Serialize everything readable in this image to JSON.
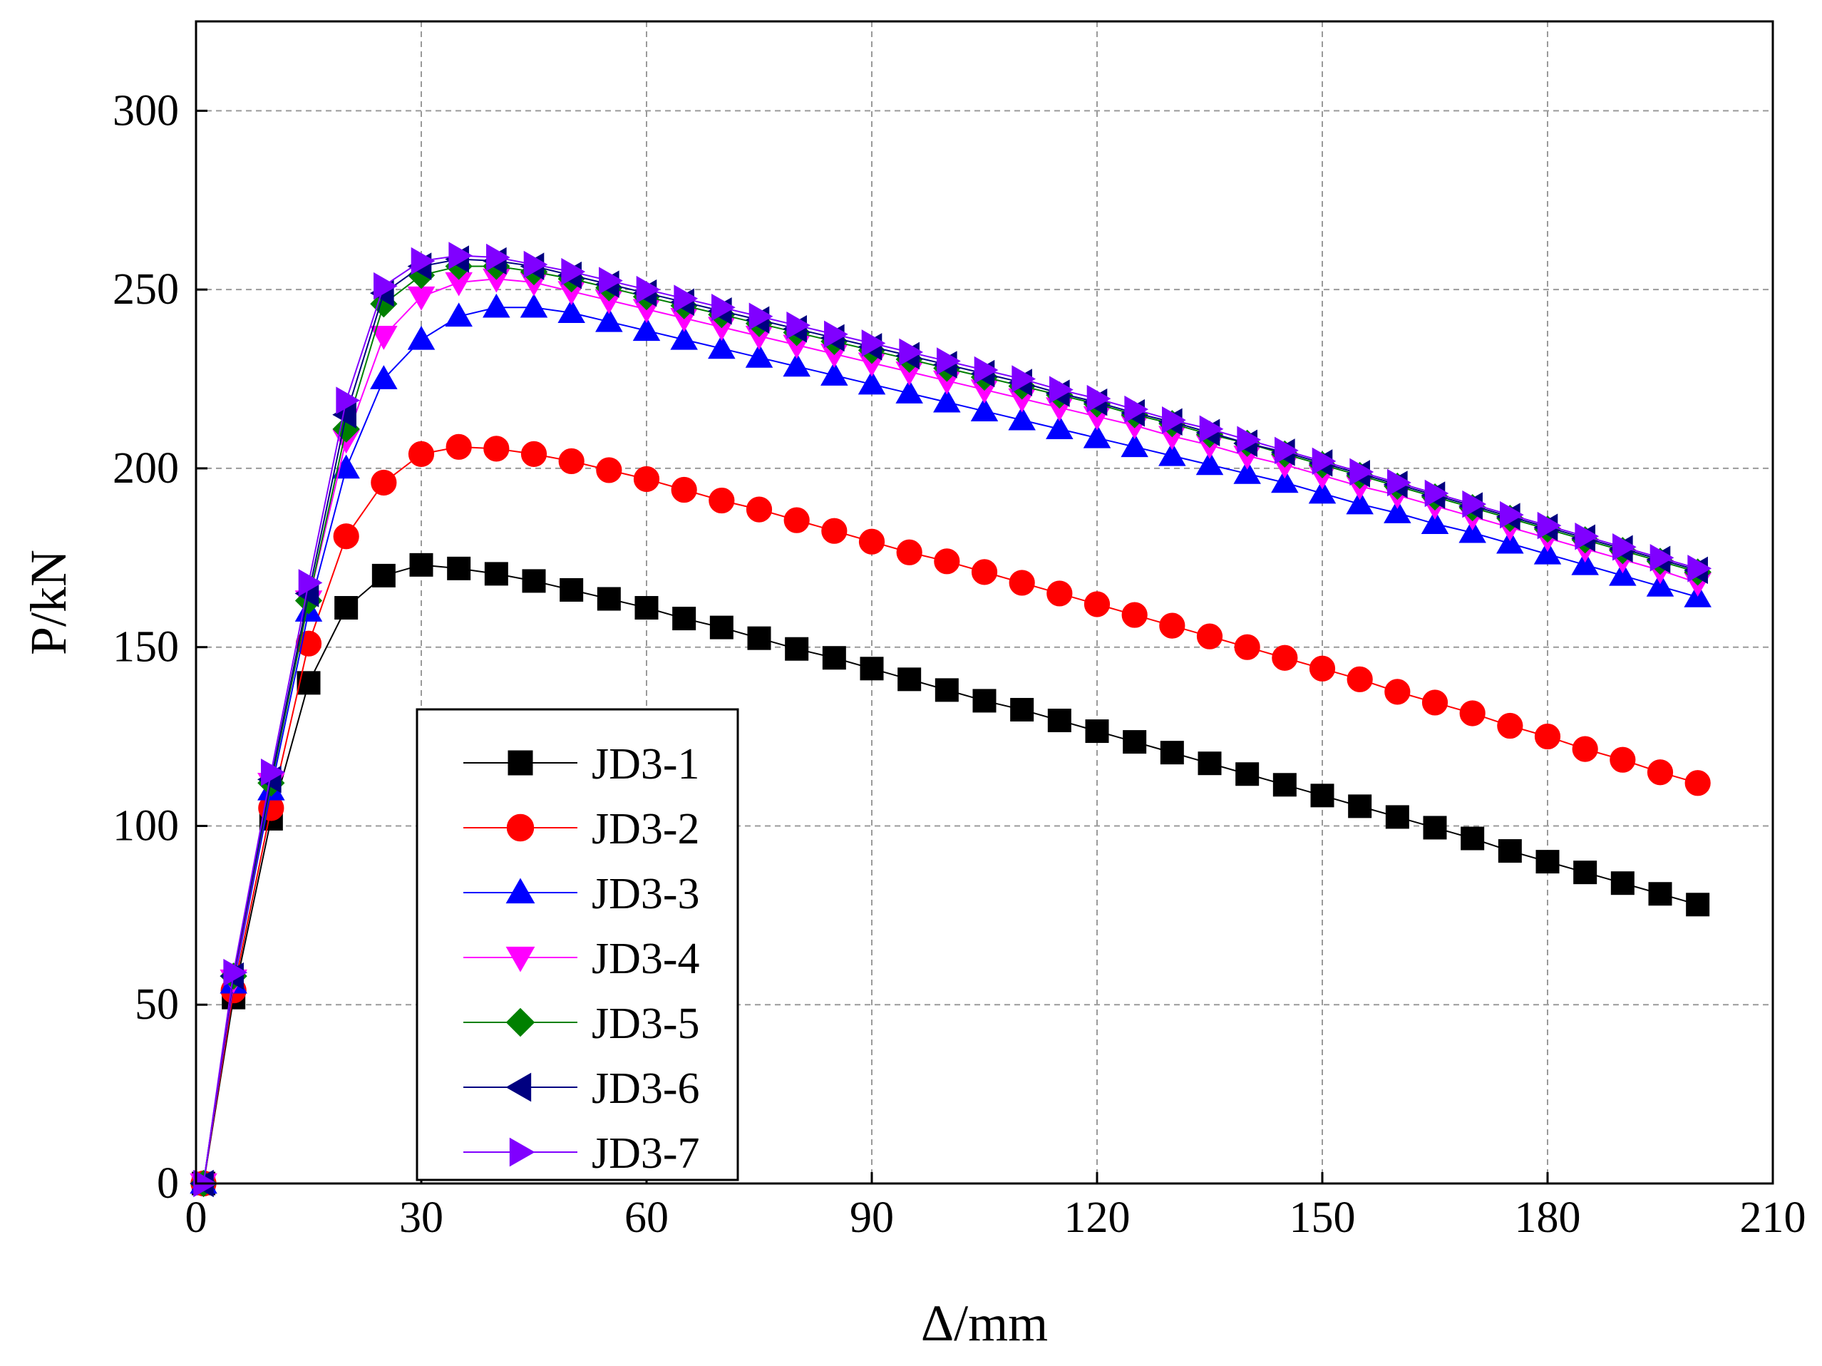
{
  "chart_data": {
    "type": "line",
    "title": "",
    "xlabel": "Δ/mm",
    "ylabel": "P/kN",
    "xlim": [
      0,
      210
    ],
    "ylim": [
      0,
      325
    ],
    "xticks": [
      0,
      30,
      60,
      90,
      120,
      150,
      180,
      210
    ],
    "yticks": [
      0,
      50,
      100,
      150,
      200,
      250,
      300
    ],
    "grid": true,
    "legend_position": "bottom-left",
    "x": [
      1,
      5,
      10,
      15,
      20,
      25,
      30,
      35,
      40,
      45,
      50,
      55,
      60,
      65,
      70,
      75,
      80,
      85,
      90,
      95,
      100,
      105,
      110,
      115,
      120,
      125,
      130,
      135,
      140,
      145,
      150,
      155,
      160,
      165,
      170,
      175,
      180,
      185,
      190,
      195,
      200
    ],
    "series": [
      {
        "name": "JD3-1",
        "color": "#000000",
        "marker": "square",
        "values": [
          0,
          52,
          102,
          140,
          161,
          170,
          173,
          172,
          170.5,
          168.5,
          166,
          163.5,
          161,
          158,
          155.5,
          152.5,
          149.5,
          147,
          144,
          141,
          138,
          135,
          132.5,
          129.5,
          126.5,
          123.5,
          120.5,
          117.5,
          114.5,
          111.5,
          108.5,
          105.5,
          102.5,
          99.5,
          96.5,
          93,
          90,
          87,
          84,
          81,
          78
        ]
      },
      {
        "name": "JD3-2",
        "color": "#ff0000",
        "marker": "circle",
        "values": [
          0,
          54,
          105,
          151,
          181,
          196,
          204,
          206,
          205.5,
          204,
          202,
          199.5,
          197,
          194,
          191,
          188.5,
          185.5,
          182.5,
          179.5,
          176.5,
          174,
          171,
          168,
          165,
          162,
          159,
          156,
          153,
          150,
          147,
          144,
          141,
          137.5,
          134.5,
          131.5,
          128,
          125,
          121.5,
          118.5,
          115,
          112
        ]
      },
      {
        "name": "JD3-3",
        "color": "#0000ff",
        "marker": "triangle-up",
        "values": [
          0,
          56,
          110,
          160,
          200,
          225,
          236,
          242.5,
          245,
          245,
          243.5,
          241,
          238.5,
          236,
          233.5,
          231,
          228.5,
          226,
          223.5,
          221,
          218.5,
          216,
          213.5,
          211,
          208.5,
          206,
          203.5,
          201,
          198.5,
          196,
          193,
          190,
          187.5,
          184.5,
          182,
          179,
          176,
          173,
          170,
          167,
          164
        ]
      },
      {
        "name": "JD3-4",
        "color": "#ff00ff",
        "marker": "triangle-down",
        "values": [
          0,
          57,
          112,
          163,
          208,
          237,
          248,
          252,
          253,
          252,
          249.5,
          247,
          244.5,
          242,
          239.5,
          237,
          234.5,
          232,
          229.5,
          227,
          224.5,
          222,
          219.5,
          217,
          214.5,
          212,
          209,
          206.5,
          203.5,
          201,
          198,
          195,
          192.5,
          189.5,
          186.5,
          183.5,
          180.5,
          177.5,
          174.5,
          171.5,
          168
        ]
      },
      {
        "name": "JD3-5",
        "color": "#008000",
        "marker": "diamond",
        "values": [
          0,
          58,
          112,
          163,
          211,
          246,
          254,
          256.5,
          256.5,
          255,
          253,
          250.5,
          248,
          245.5,
          243,
          240.5,
          238,
          235.5,
          233,
          230.5,
          228,
          225.5,
          223,
          220.5,
          218,
          215,
          212.5,
          209.5,
          207,
          204,
          201,
          198,
          195,
          192,
          189,
          186,
          183,
          180,
          177,
          174,
          171
        ]
      },
      {
        "name": "JD3-6",
        "color": "#000080",
        "marker": "triangle-left",
        "values": [
          0,
          58,
          113,
          165,
          215,
          249,
          256.5,
          258.5,
          258,
          256.5,
          254,
          251.5,
          249,
          246.5,
          244,
          241.5,
          239,
          236.5,
          234,
          231.5,
          229,
          226.5,
          224,
          221,
          218.5,
          215.5,
          213,
          210,
          207,
          204.5,
          201.5,
          198.5,
          195.5,
          192.5,
          189.5,
          186.5,
          183.5,
          180.5,
          177.5,
          174.5,
          171.5
        ]
      },
      {
        "name": "JD3-7",
        "color": "#8000ff",
        "marker": "triangle-right",
        "values": [
          0,
          59,
          115,
          168,
          219,
          251,
          258,
          259.5,
          259,
          257,
          255,
          252.5,
          250,
          247.5,
          245,
          242.5,
          240,
          237.5,
          235,
          232.5,
          230,
          227.5,
          225,
          222,
          219.5,
          216.5,
          213.5,
          211,
          208,
          205,
          202,
          199,
          196,
          193,
          190,
          187,
          184,
          181,
          178,
          175,
          172
        ]
      }
    ]
  }
}
